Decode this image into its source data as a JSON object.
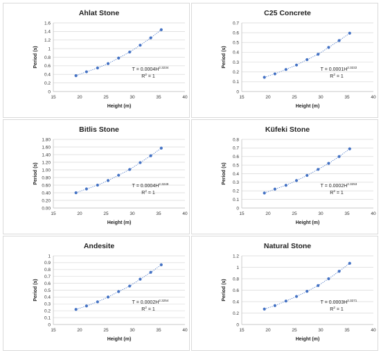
{
  "chart_data": [
    {
      "type": "scatter",
      "title": "Ahlat Stone",
      "xlabel": "Height (m)",
      "ylabel": "Period (s)",
      "xlim": [
        15,
        40
      ],
      "ylim": [
        0,
        1.6
      ],
      "xticks": [
        "15",
        "20",
        "25",
        "30",
        "35",
        "40"
      ],
      "yticks": [
        "0",
        "0.2",
        "0.4",
        "0.6",
        "0.8",
        "1",
        "1.2",
        "1.4",
        "1.6"
      ],
      "x": [
        19.3,
        21.3,
        23.4,
        25.4,
        27.4,
        29.5,
        31.5,
        33.5,
        35.5
      ],
      "y": [
        0.37,
        0.46,
        0.55,
        0.65,
        0.78,
        0.92,
        1.08,
        1.25,
        1.44
      ],
      "equation": {
        "prefix": "T = 0.0004H",
        "exponent": "2.3234",
        "r_base": "R",
        "r_exp": "2",
        "r_val": " = 1"
      },
      "trendline": "dotted",
      "grid": "major",
      "color": "#4472c4"
    },
    {
      "type": "scatter",
      "title": "C25 Concrete",
      "xlabel": "Height (m)",
      "ylabel": "Period (s)",
      "xlim": [
        15,
        40
      ],
      "ylim": [
        0,
        0.7
      ],
      "xticks": [
        "15",
        "20",
        "25",
        "30",
        "35",
        "40"
      ],
      "yticks": [
        "0",
        "0.1",
        "0.2",
        "0.3",
        "0.4",
        "0.5",
        "0.6",
        "0.7"
      ],
      "x": [
        19.3,
        21.3,
        23.4,
        25.4,
        27.4,
        29.5,
        31.5,
        33.5,
        35.5
      ],
      "y": [
        0.145,
        0.18,
        0.225,
        0.27,
        0.325,
        0.38,
        0.45,
        0.52,
        0.595
      ],
      "equation": {
        "prefix": "T = 0.0001H",
        "exponent": "2.3222",
        "r_base": "R",
        "r_exp": "2",
        "r_val": " = 1"
      },
      "trendline": "dotted",
      "grid": "major",
      "color": "#4472c4"
    },
    {
      "type": "scatter",
      "title": "Bitlis Stone",
      "xlabel": "Height (m)",
      "ylabel": "Period (s)",
      "xlim": [
        15,
        40
      ],
      "ylim": [
        0,
        1.8
      ],
      "xticks": [
        "15",
        "20",
        "25",
        "30",
        "35",
        "40"
      ],
      "yticks": [
        "0.00",
        "0.20",
        "0.40",
        "0.60",
        "0.80",
        "1.00",
        "1.20",
        "1.40",
        "1.60",
        "1.80"
      ],
      "x": [
        19.3,
        21.3,
        23.4,
        25.4,
        27.4,
        29.5,
        31.5,
        33.5,
        35.5
      ],
      "y": [
        0.4,
        0.5,
        0.6,
        0.72,
        0.86,
        1.01,
        1.19,
        1.37,
        1.57
      ],
      "equation": {
        "prefix": "T = 0.0004H",
        "exponent": "2.3249",
        "r_base": "R",
        "r_exp": "2",
        "r_val": " = 1"
      },
      "trendline": "dotted",
      "grid": "major",
      "color": "#4472c4"
    },
    {
      "type": "scatter",
      "title": "Küfeki Stone",
      "xlabel": "Height (m)",
      "ylabel": "Period (s)",
      "xlim": [
        15,
        40
      ],
      "ylim": [
        0,
        0.8
      ],
      "xticks": [
        "15",
        "20",
        "25",
        "30",
        "35",
        "40"
      ],
      "yticks": [
        "0",
        "0.1",
        "0.2",
        "0.3",
        "0.4",
        "0.5",
        "0.6",
        "0.7",
        "0.8"
      ],
      "x": [
        19.3,
        21.3,
        23.4,
        25.4,
        27.4,
        29.5,
        31.5,
        33.5,
        35.5
      ],
      "y": [
        0.175,
        0.22,
        0.265,
        0.32,
        0.38,
        0.45,
        0.52,
        0.6,
        0.69
      ],
      "equation": {
        "prefix": "T = 0.0002H",
        "exponent": "2.3253",
        "r_base": "R",
        "r_exp": "2",
        "r_val": " = 1"
      },
      "trendline": "dotted",
      "grid": "major",
      "color": "#4472c4"
    },
    {
      "type": "scatter",
      "title": "Andesite",
      "xlabel": "Height (m)",
      "ylabel": "Period (s)",
      "xlim": [
        15,
        40
      ],
      "ylim": [
        0,
        1
      ],
      "xticks": [
        "15",
        "20",
        "25",
        "30",
        "35",
        "40"
      ],
      "yticks": [
        "0",
        "0.1",
        "0.2",
        "0.3",
        "0.4",
        "0.5",
        "0.6",
        "0.7",
        "0.8",
        "0.9",
        "1"
      ],
      "x": [
        19.3,
        21.3,
        23.4,
        25.4,
        27.4,
        29.5,
        31.5,
        33.5,
        35.5
      ],
      "y": [
        0.22,
        0.27,
        0.33,
        0.4,
        0.48,
        0.56,
        0.66,
        0.76,
        0.87
      ],
      "equation": {
        "prefix": "T = 0.0002H",
        "exponent": "2.3254",
        "r_base": "R",
        "r_exp": "2",
        "r_val": " = 1"
      },
      "trendline": "dotted",
      "grid": "major",
      "color": "#4472c4"
    },
    {
      "type": "scatter",
      "title": "Natural Stone",
      "xlabel": "Height (m)",
      "ylabel": "Period (s)",
      "xlim": [
        15,
        40
      ],
      "ylim": [
        0,
        1.2
      ],
      "xticks": [
        "15",
        "20",
        "25",
        "30",
        "35",
        "40"
      ],
      "yticks": [
        "0",
        "0.2",
        "0.4",
        "0.6",
        "0.8",
        "1",
        "1.2"
      ],
      "x": [
        19.3,
        21.3,
        23.4,
        25.4,
        27.4,
        29.5,
        31.5,
        33.5,
        35.5
      ],
      "y": [
        0.27,
        0.33,
        0.41,
        0.49,
        0.58,
        0.68,
        0.8,
        0.93,
        1.07
      ],
      "equation": {
        "prefix": "T = 0.0003H",
        "exponent": "2.3271",
        "r_base": "R",
        "r_exp": "2",
        "r_val": " = 1"
      },
      "trendline": "dotted",
      "grid": "major",
      "color": "#4472c4"
    }
  ]
}
